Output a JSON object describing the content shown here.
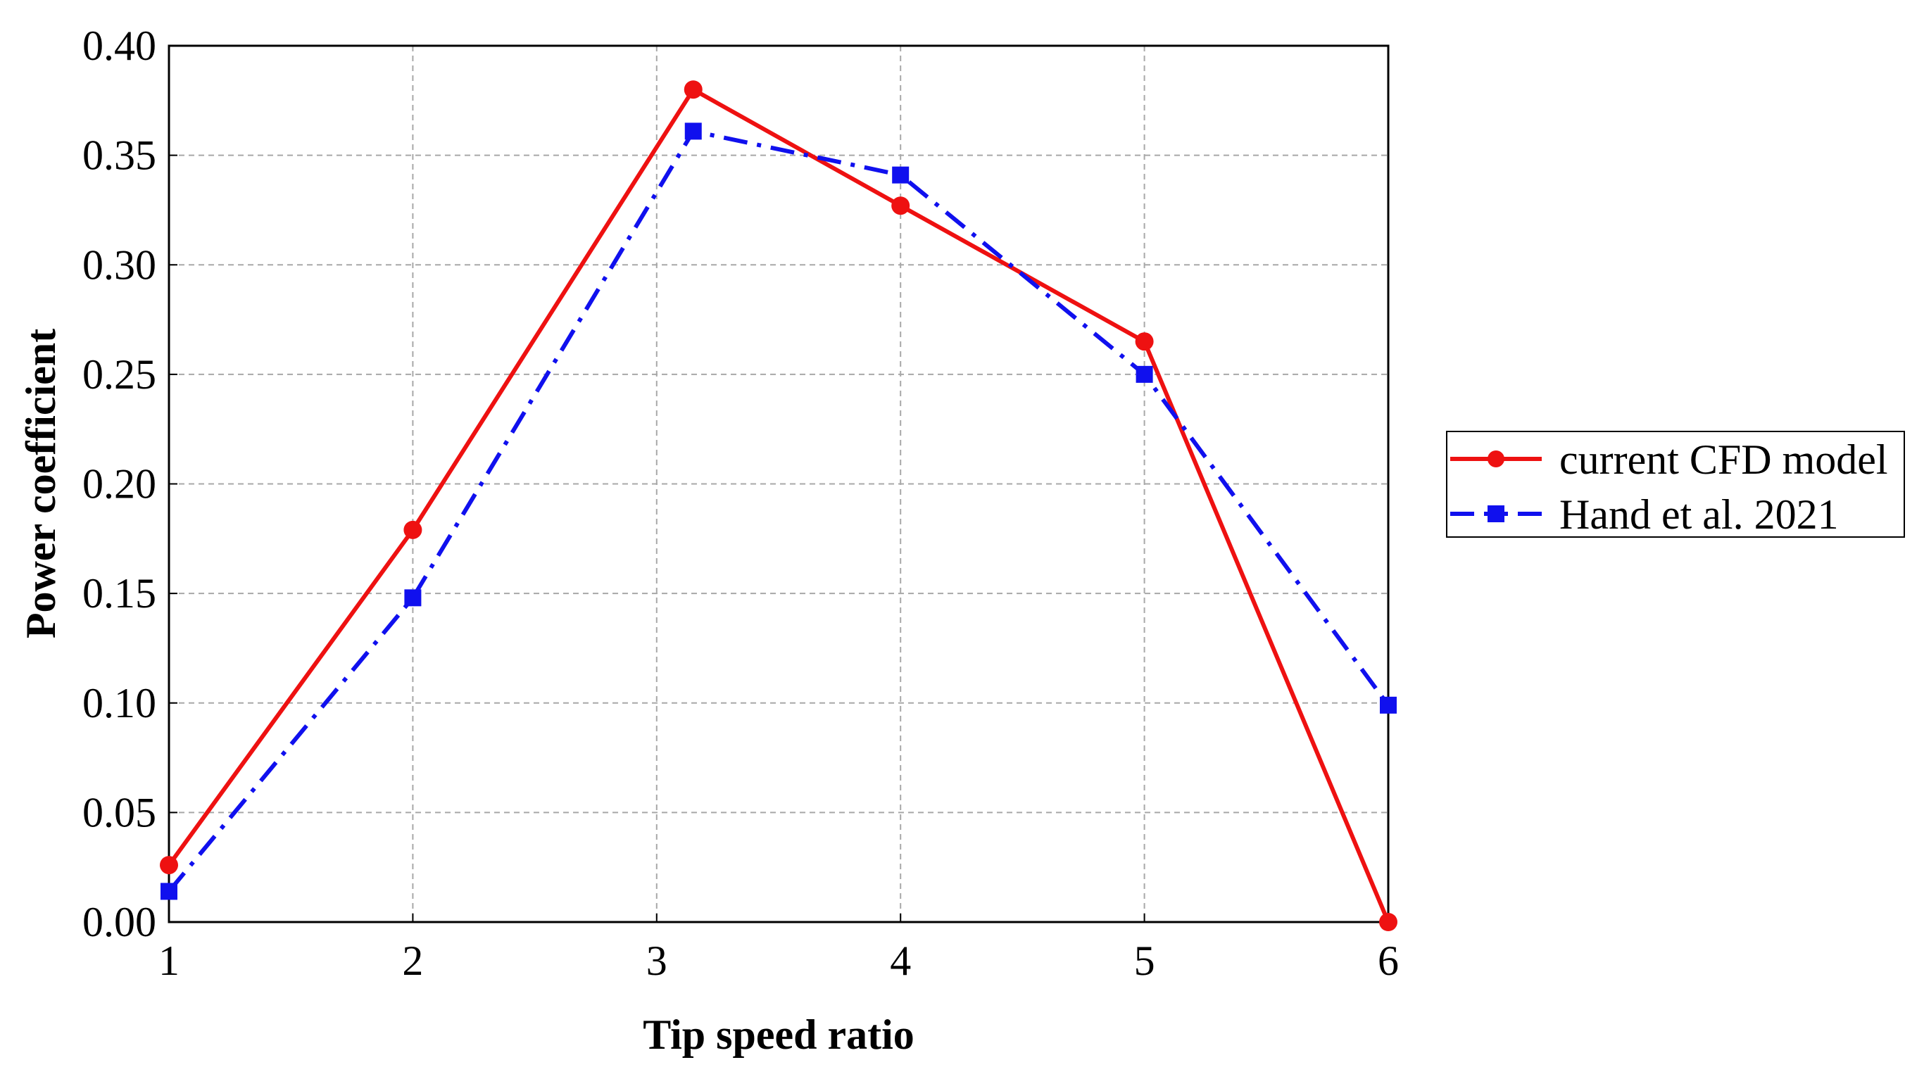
{
  "chart_data": {
    "type": "line",
    "title": "",
    "xlabel": "Tip speed ratio",
    "ylabel": "Power coefficient",
    "xlim": [
      1,
      6
    ],
    "ylim": [
      0,
      0.4
    ],
    "x_ticks": [
      "1",
      "2",
      "3",
      "4",
      "5",
      "6"
    ],
    "y_ticks": [
      "0.00",
      "0.05",
      "0.10",
      "0.15",
      "0.20",
      "0.25",
      "0.30",
      "0.35",
      "0.40"
    ],
    "grid": true,
    "legend_position": "right",
    "series": [
      {
        "name": "current CFD model",
        "color": "#ee1111",
        "marker": "circle",
        "line_style": "solid",
        "x": [
          1,
          2,
          3.15,
          4,
          5,
          6
        ],
        "y": [
          0.026,
          0.179,
          0.38,
          0.327,
          0.265,
          0.0
        ]
      },
      {
        "name": "Hand et al. 2021",
        "color": "#1010ee",
        "marker": "square",
        "line_style": "dash-dot",
        "x": [
          1,
          2,
          3.15,
          4,
          5,
          6
        ],
        "y": [
          0.014,
          0.148,
          0.361,
          0.341,
          0.25,
          0.099
        ]
      }
    ]
  }
}
